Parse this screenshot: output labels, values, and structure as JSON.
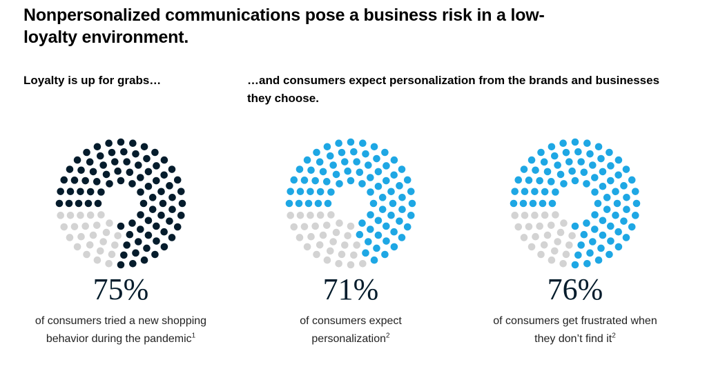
{
  "title": "Nonpersonalized communications pose a business risk in a low-loyalty environment.",
  "subheads": {
    "left": "Loyalty is up for grabs…",
    "right": "…and consumers expect personalization from the brands and businesses they choose."
  },
  "colors": {
    "filled_dark": "#051c2c",
    "filled_blue": "#1ea7e4",
    "unfilled": "#d3d3d3"
  },
  "chart_data": [
    {
      "type": "dot-pie",
      "value": 75,
      "value_label": "75%",
      "description": "of consumers tried a new shopping behavior during the pandemic",
      "footnote": "1",
      "fill_color": "#051c2c",
      "empty_color": "#d3d3d3"
    },
    {
      "type": "dot-pie",
      "value": 71,
      "value_label": "71%",
      "description": "of consumers expect personalization",
      "footnote": "2",
      "fill_color": "#1ea7e4",
      "empty_color": "#d3d3d3"
    },
    {
      "type": "dot-pie",
      "value": 76,
      "value_label": "76%",
      "description": "of consumers get frustrated when they don’t find it",
      "footnote": "2",
      "fill_color": "#1ea7e4",
      "empty_color": "#d3d3d3"
    }
  ]
}
